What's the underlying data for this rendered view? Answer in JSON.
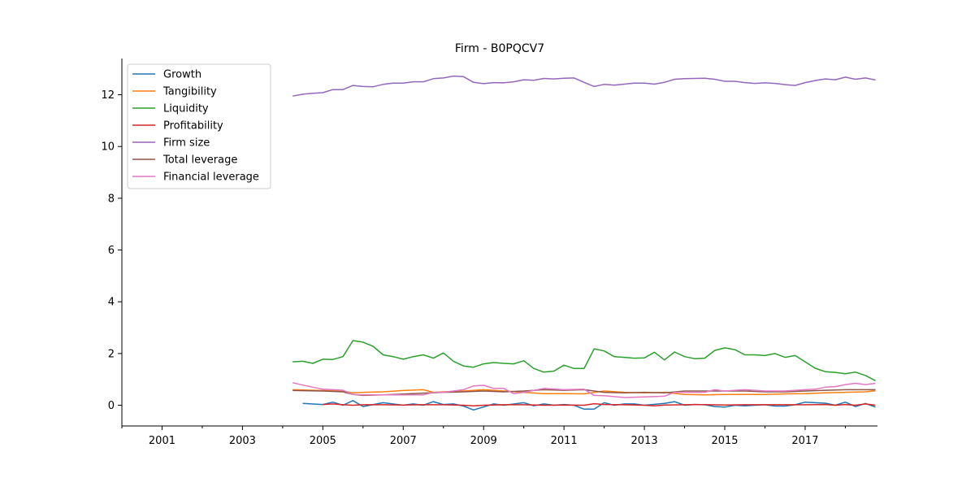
{
  "chart_data": {
    "type": "line",
    "title": "Firm - B0PQCV7",
    "xlabel": "",
    "ylabel": "",
    "xlim": [
      2000.0,
      2018.8
    ],
    "ylim": [
      -0.8,
      13.4
    ],
    "x_ticks_major": [
      "2001",
      "2003",
      "2005",
      "2007",
      "2009",
      "2011",
      "2013",
      "2015",
      "2017"
    ],
    "y_ticks": [
      "0",
      "2",
      "4",
      "6",
      "8",
      "10",
      "12"
    ],
    "legend_position": "top-left",
    "grid": false,
    "series": [
      {
        "name": "Growth",
        "color": "#1f77b4",
        "x": [
          2004.5,
          2005.0,
          2005.25,
          2005.5,
          2005.75,
          2006.0,
          2006.5,
          2007.0,
          2007.25,
          2007.5,
          2007.75,
          2008.0,
          2008.25,
          2008.5,
          2008.75,
          2009.25,
          2009.5,
          2010.0,
          2010.25,
          2010.5,
          2010.75,
          2011.0,
          2011.25,
          2011.5,
          2011.75,
          2012.0,
          2012.25,
          2012.5,
          2012.75,
          2013.0,
          2013.5,
          2013.75,
          2014.0,
          2014.25,
          2014.5,
          2014.75,
          2015.0,
          2015.25,
          2015.5,
          2015.75,
          2016.0,
          2016.25,
          2016.5,
          2016.75,
          2017.0,
          2017.25,
          2017.5,
          2017.75,
          2018.0,
          2018.25,
          2018.5,
          2018.75
        ],
        "y": [
          0.07,
          0.03,
          0.12,
          0.0,
          0.18,
          -0.05,
          0.1,
          0.0,
          0.05,
          0.0,
          0.14,
          0.03,
          0.05,
          -0.03,
          -0.18,
          0.05,
          0.0,
          0.1,
          -0.02,
          0.05,
          0.0,
          0.03,
          0.0,
          -0.15,
          -0.15,
          0.1,
          0.0,
          0.05,
          0.05,
          0.0,
          0.07,
          0.14,
          0.0,
          0.03,
          0.02,
          -0.05,
          -0.07,
          0.0,
          -0.02,
          0.0,
          0.02,
          -0.03,
          -0.03,
          0.02,
          0.12,
          0.1,
          0.08,
          0.0,
          0.12,
          -0.05,
          0.07,
          -0.07
        ]
      },
      {
        "name": "Tangibility",
        "color": "#ff7f0e",
        "x": [
          2004.25,
          2005.0,
          2005.5,
          2005.75,
          2006.0,
          2006.5,
          2007.0,
          2007.5,
          2007.75,
          2008.0,
          2008.5,
          2009.0,
          2009.5,
          2010.0,
          2010.5,
          2011.0,
          2011.5,
          2012.0,
          2012.5,
          2013.0,
          2013.5,
          2014.0,
          2014.5,
          2015.0,
          2015.5,
          2016.0,
          2016.5,
          2017.0,
          2017.5,
          2018.0,
          2018.5,
          2018.75
        ],
        "y": [
          0.6,
          0.57,
          0.55,
          0.48,
          0.5,
          0.52,
          0.57,
          0.6,
          0.5,
          0.52,
          0.55,
          0.6,
          0.55,
          0.5,
          0.45,
          0.45,
          0.44,
          0.55,
          0.5,
          0.48,
          0.5,
          0.42,
          0.4,
          0.42,
          0.42,
          0.42,
          0.44,
          0.45,
          0.48,
          0.5,
          0.52,
          0.56
        ]
      },
      {
        "name": "Liquidity",
        "color": "#2ca02c",
        "x": [
          2004.25,
          2004.5,
          2004.75,
          2005.0,
          2005.25,
          2005.5,
          2005.75,
          2006.0,
          2006.25,
          2006.5,
          2006.75,
          2007.0,
          2007.25,
          2007.5,
          2007.75,
          2008.0,
          2008.25,
          2008.5,
          2008.75,
          2009.0,
          2009.25,
          2009.5,
          2009.75,
          2010.0,
          2010.25,
          2010.5,
          2010.75,
          2011.0,
          2011.25,
          2011.5,
          2011.75,
          2012.0,
          2012.25,
          2012.5,
          2012.75,
          2013.0,
          2013.25,
          2013.5,
          2013.75,
          2014.0,
          2014.25,
          2014.5,
          2014.75,
          2015.0,
          2015.25,
          2015.5,
          2015.75,
          2016.0,
          2016.25,
          2016.5,
          2016.75,
          2017.0,
          2017.25,
          2017.5,
          2017.75,
          2018.0,
          2018.25,
          2018.5,
          2018.75
        ],
        "y": [
          1.68,
          1.7,
          1.62,
          1.78,
          1.77,
          1.88,
          2.5,
          2.44,
          2.28,
          1.95,
          1.88,
          1.78,
          1.88,
          1.95,
          1.82,
          2.02,
          1.7,
          1.52,
          1.47,
          1.6,
          1.65,
          1.62,
          1.6,
          1.72,
          1.42,
          1.28,
          1.32,
          1.55,
          1.42,
          1.42,
          2.18,
          2.1,
          1.88,
          1.85,
          1.82,
          1.83,
          2.05,
          1.75,
          2.06,
          1.88,
          1.8,
          1.82,
          2.12,
          2.22,
          2.15,
          1.95,
          1.95,
          1.92,
          2.0,
          1.85,
          1.92,
          1.68,
          1.43,
          1.3,
          1.27,
          1.22,
          1.28,
          1.15,
          0.95
        ]
      },
      {
        "name": "Profitability",
        "color": "#d62728",
        "x": [
          2005.0,
          2005.25,
          2005.5,
          2005.75,
          2006.0,
          2006.5,
          2007.0,
          2007.5,
          2008.0,
          2008.5,
          2008.75,
          2009.0,
          2009.5,
          2010.0,
          2010.5,
          2011.0,
          2011.5,
          2011.75,
          2012.0,
          2012.5,
          2013.0,
          2013.25,
          2013.5,
          2014.0,
          2014.25,
          2015.0,
          2015.5,
          2016.0,
          2016.5,
          2017.0,
          2017.5,
          2017.75,
          2018.0,
          2018.25,
          2018.5,
          2018.75
        ],
        "y": [
          0.03,
          0.05,
          0.02,
          0.0,
          0.02,
          0.02,
          0.01,
          0.02,
          0.02,
          0.0,
          -0.02,
          0.0,
          0.02,
          0.02,
          0.0,
          0.01,
          0.0,
          0.06,
          0.03,
          0.02,
          0.0,
          -0.02,
          0.01,
          0.02,
          0.03,
          0.01,
          0.02,
          0.02,
          0.02,
          0.02,
          0.03,
          0.0,
          0.03,
          0.0,
          0.05,
          0.0
        ]
      },
      {
        "name": "Firm size",
        "color": "#9467bd",
        "x": [
          2004.25,
          2004.5,
          2004.75,
          2005.0,
          2005.25,
          2005.5,
          2005.75,
          2006.0,
          2006.25,
          2006.5,
          2006.75,
          2007.0,
          2007.25,
          2007.5,
          2007.75,
          2008.0,
          2008.25,
          2008.5,
          2008.75,
          2009.0,
          2009.25,
          2009.5,
          2009.75,
          2010.0,
          2010.25,
          2010.5,
          2010.75,
          2011.0,
          2011.25,
          2011.5,
          2011.75,
          2012.0,
          2012.25,
          2012.5,
          2012.75,
          2013.0,
          2013.25,
          2013.5,
          2013.75,
          2014.0,
          2014.25,
          2014.5,
          2014.75,
          2015.0,
          2015.25,
          2015.5,
          2015.75,
          2016.0,
          2016.25,
          2016.5,
          2016.75,
          2017.0,
          2017.25,
          2017.5,
          2017.75,
          2018.0,
          2018.25,
          2018.5,
          2018.75
        ],
        "y": [
          11.95,
          12.02,
          12.06,
          12.08,
          12.2,
          12.2,
          12.36,
          12.32,
          12.31,
          12.4,
          12.45,
          12.45,
          12.5,
          12.5,
          12.62,
          12.65,
          12.72,
          12.7,
          12.48,
          12.43,
          12.47,
          12.46,
          12.5,
          12.58,
          12.56,
          12.63,
          12.61,
          12.64,
          12.65,
          12.48,
          12.32,
          12.4,
          12.37,
          12.41,
          12.45,
          12.45,
          12.41,
          12.48,
          12.6,
          12.62,
          12.63,
          12.64,
          12.6,
          12.52,
          12.52,
          12.47,
          12.44,
          12.46,
          12.44,
          12.39,
          12.36,
          12.47,
          12.55,
          12.61,
          12.58,
          12.68,
          12.6,
          12.65,
          12.57
        ]
      },
      {
        "name": "Total leverage",
        "color": "#8c564b",
        "x": [
          2004.25,
          2005.0,
          2005.5,
          2005.75,
          2006.0,
          2006.5,
          2007.0,
          2007.5,
          2008.0,
          2008.5,
          2009.0,
          2009.5,
          2010.0,
          2010.5,
          2011.0,
          2011.5,
          2012.0,
          2012.5,
          2013.0,
          2013.5,
          2014.0,
          2014.5,
          2015.0,
          2015.5,
          2016.0,
          2016.5,
          2017.0,
          2017.5,
          2018.0,
          2018.5,
          2018.75
        ],
        "y": [
          0.57,
          0.55,
          0.52,
          0.42,
          0.38,
          0.4,
          0.43,
          0.47,
          0.5,
          0.52,
          0.55,
          0.52,
          0.55,
          0.6,
          0.58,
          0.6,
          0.5,
          0.48,
          0.5,
          0.48,
          0.55,
          0.55,
          0.55,
          0.55,
          0.52,
          0.52,
          0.55,
          0.58,
          0.6,
          0.6,
          0.6
        ]
      },
      {
        "name": "Financial leverage",
        "color": "#e377c2",
        "x": [
          2004.25,
          2004.5,
          2004.75,
          2005.0,
          2005.25,
          2005.5,
          2005.75,
          2006.0,
          2006.5,
          2007.0,
          2007.5,
          2007.75,
          2008.0,
          2008.5,
          2008.75,
          2009.0,
          2009.25,
          2009.5,
          2009.75,
          2010.0,
          2010.5,
          2011.0,
          2011.5,
          2011.75,
          2012.0,
          2012.5,
          2013.0,
          2013.5,
          2013.75,
          2014.0,
          2014.5,
          2014.75,
          2015.0,
          2015.5,
          2016.0,
          2016.5,
          2017.0,
          2017.25,
          2017.5,
          2017.75,
          2018.0,
          2018.25,
          2018.5,
          2018.75
        ],
        "y": [
          0.87,
          0.78,
          0.7,
          0.62,
          0.6,
          0.58,
          0.42,
          0.4,
          0.4,
          0.4,
          0.4,
          0.5,
          0.5,
          0.6,
          0.75,
          0.77,
          0.65,
          0.65,
          0.45,
          0.5,
          0.65,
          0.6,
          0.62,
          0.38,
          0.37,
          0.3,
          0.32,
          0.35,
          0.5,
          0.5,
          0.5,
          0.6,
          0.55,
          0.6,
          0.55,
          0.55,
          0.6,
          0.62,
          0.7,
          0.72,
          0.8,
          0.85,
          0.8,
          0.85
        ]
      }
    ]
  }
}
